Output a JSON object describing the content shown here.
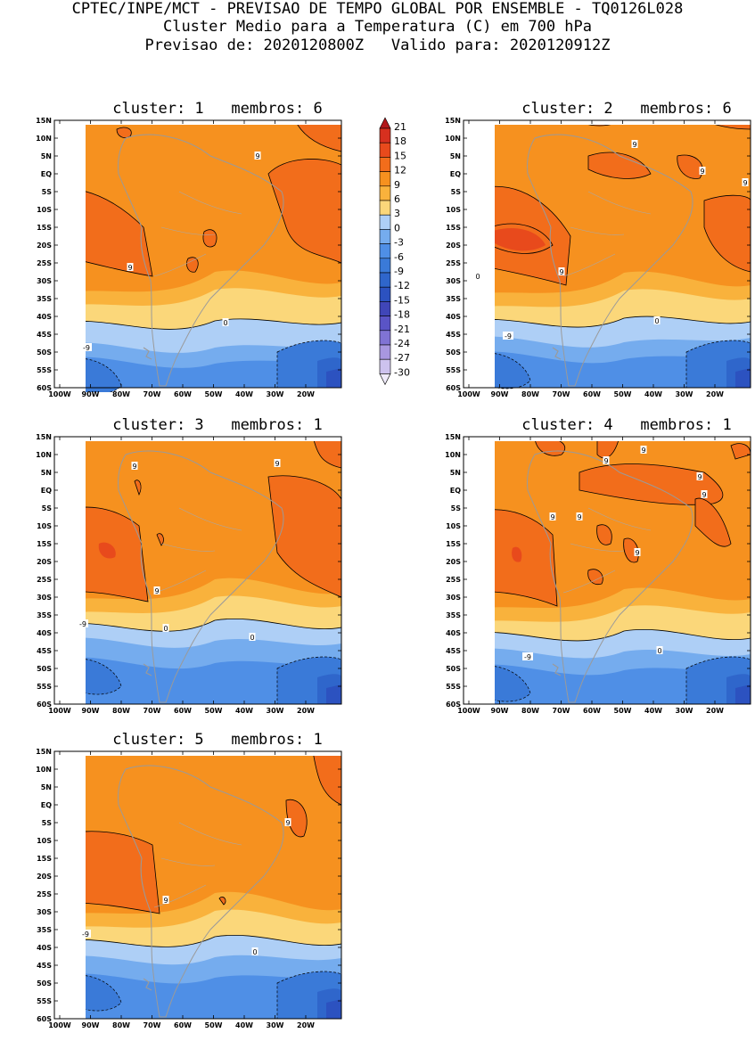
{
  "header": {
    "line1": "CPTEC/INPE/MCT - PREVISAO DE TEMPO GLOBAL POR ENSEMBLE - TQ0126L028",
    "line2": "Cluster Medio para a Temperatura (C) em 700 hPa",
    "line3": "Previsao de: 2020120800Z   Valido para: 2020120912Z"
  },
  "axes": {
    "lat_labels": [
      "15N",
      "10N",
      "5N",
      "EQ",
      "5S",
      "10S",
      "15S",
      "20S",
      "25S",
      "30S",
      "35S",
      "40S",
      "45S",
      "50S",
      "55S",
      "60S"
    ],
    "lon_labels": [
      "100W",
      "90W",
      "80W",
      "70W",
      "60W",
      "50W",
      "40W",
      "30W",
      "20W"
    ]
  },
  "legend": {
    "labels": [
      "21",
      "18",
      "15",
      "12",
      "9",
      "6",
      "3",
      "0",
      "-3",
      "-6",
      "-9",
      "-12",
      "-15",
      "-18",
      "-21",
      "-24",
      "-27",
      "-30"
    ],
    "colors": [
      "#b2181b",
      "#d7301f",
      "#e84a1c",
      "#f26d1b",
      "#f6911f",
      "#f9b23c",
      "#fbd77a",
      "#aecff6",
      "#75acee",
      "#4f8fe6",
      "#3a7ad8",
      "#2f66cb",
      "#2c52c0",
      "#4046b8",
      "#5a54c6",
      "#8073d4",
      "#a897e0",
      "#cdc2ee"
    ]
  },
  "panels": [
    {
      "title": "cluster: 1   membros: 6",
      "labels": [
        "9",
        "9",
        "0",
        "-9"
      ]
    },
    {
      "title": "cluster: 2   membros: 6",
      "labels": [
        "9",
        "9",
        "9",
        "9",
        "0",
        "0",
        "-9"
      ]
    },
    {
      "title": "cluster: 3   membros: 1",
      "labels": [
        "9",
        "9",
        "9",
        "0",
        "0",
        "-9"
      ]
    },
    {
      "title": "cluster: 4   membros: 1",
      "labels": [
        "9",
        "9",
        "9",
        "9",
        "9",
        "9",
        "9",
        "0",
        "-9"
      ]
    },
    {
      "title": "cluster: 5   membros: 1",
      "labels": [
        "9",
        "9",
        "0",
        "-9"
      ]
    }
  ]
}
